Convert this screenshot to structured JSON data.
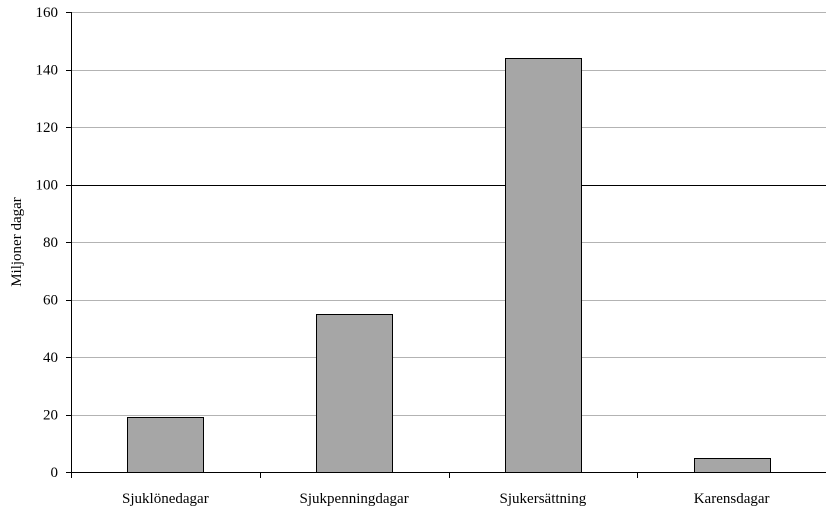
{
  "chart_data": {
    "type": "bar",
    "categories": [
      "Sjuklönedagar",
      "Sjukpenningdagar",
      "Sjukersättning",
      "Karensdagar"
    ],
    "values": [
      19,
      55,
      144,
      5
    ],
    "ylabel": "Miljoner dagar",
    "xlabel": "",
    "ylim": [
      0,
      160
    ],
    "yticks": [
      0,
      20,
      40,
      60,
      80,
      100,
      120,
      140,
      160
    ],
    "grid": true,
    "emphasized_gridline": 100,
    "legend": "none",
    "colors": {
      "bar_fill": "#a6a6a6",
      "bar_stroke": "#000000",
      "grid": "#b3b3b3",
      "axis": "#000000"
    }
  }
}
